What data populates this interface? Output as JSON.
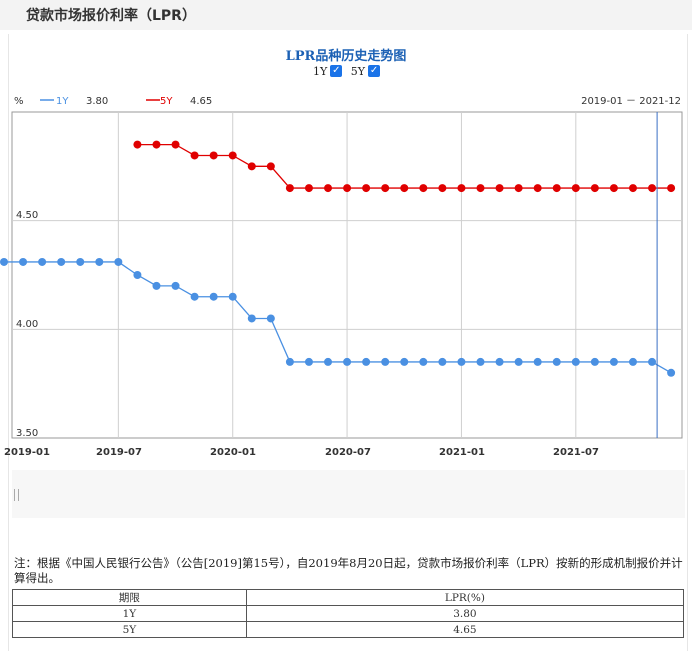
{
  "page": {
    "title": "贷款市场报价利率（LPR）"
  },
  "chart_data": {
    "type": "line",
    "title": "LPR品种历史走势图",
    "toggles": [
      {
        "label": "1Y",
        "checked": true
      },
      {
        "label": "5Y",
        "checked": true
      }
    ],
    "unit_label": "%",
    "date_range": "2019-01 － 2021-12",
    "legend": [
      {
        "name": "1Y",
        "value": "3.80",
        "color": "#4a90e2"
      },
      {
        "name": "5Y",
        "value": "4.65",
        "color": "#e00000"
      }
    ],
    "y_ticks": [
      "4.50",
      "4.00",
      "3.50"
    ],
    "x_ticks": [
      "2019-01",
      "2019-07",
      "2020-01",
      "2020-07",
      "2021-01",
      "2021-07"
    ],
    "ylim": [
      3.5,
      5.0
    ],
    "grid": true,
    "categories": [
      "2019-01",
      "2019-02",
      "2019-03",
      "2019-04",
      "2019-05",
      "2019-06",
      "2019-07",
      "2019-08",
      "2019-09",
      "2019-10",
      "2019-11",
      "2019-12",
      "2020-01",
      "2020-02",
      "2020-03",
      "2020-04",
      "2020-05",
      "2020-06",
      "2020-07",
      "2020-08",
      "2020-09",
      "2020-10",
      "2020-11",
      "2020-12",
      "2021-01",
      "2021-02",
      "2021-03",
      "2021-04",
      "2021-05",
      "2021-06",
      "2021-07",
      "2021-08",
      "2021-09",
      "2021-10",
      "2021-11",
      "2021-12"
    ],
    "series": [
      {
        "name": "1Y",
        "color": "#4a90e2",
        "values": [
          4.31,
          4.31,
          4.31,
          4.31,
          4.31,
          4.31,
          4.31,
          4.25,
          4.2,
          4.2,
          4.15,
          4.15,
          4.15,
          4.05,
          4.05,
          3.85,
          3.85,
          3.85,
          3.85,
          3.85,
          3.85,
          3.85,
          3.85,
          3.85,
          3.85,
          3.85,
          3.85,
          3.85,
          3.85,
          3.85,
          3.85,
          3.85,
          3.85,
          3.85,
          3.85,
          3.8
        ]
      },
      {
        "name": "5Y",
        "color": "#e00000",
        "values": [
          null,
          null,
          null,
          null,
          null,
          null,
          null,
          4.85,
          4.85,
          4.85,
          4.8,
          4.8,
          4.8,
          4.75,
          4.75,
          4.65,
          4.65,
          4.65,
          4.65,
          4.65,
          4.65,
          4.65,
          4.65,
          4.65,
          4.65,
          4.65,
          4.65,
          4.65,
          4.65,
          4.65,
          4.65,
          4.65,
          4.65,
          4.65,
          4.65,
          4.65
        ]
      }
    ],
    "cursor_index": 35
  },
  "note": "注：根据《中国人民银行公告》（公告[2019]第15号），自2019年8月20日起，贷款市场报价利率（LPR）按新的形成机制报价并计算得出。",
  "table": {
    "headers": [
      "期限",
      "LPR(%)"
    ],
    "rows": [
      [
        "1Y",
        "3.80"
      ],
      [
        "5Y",
        "4.65"
      ]
    ]
  }
}
